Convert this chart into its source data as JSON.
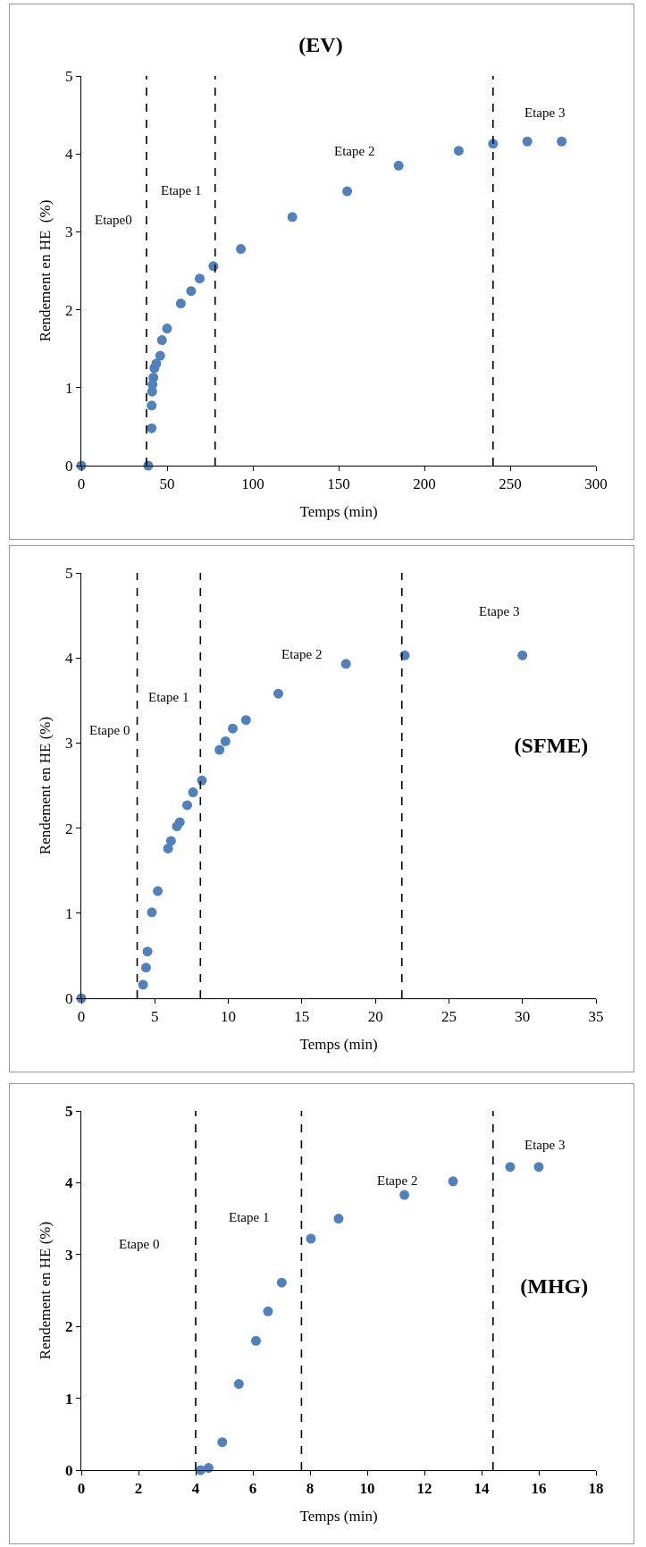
{
  "chart_data": [
    {
      "type": "scatter",
      "title": "(EV)",
      "xlabel": "Temps (min)",
      "ylabel": "Rendement en HE  (%)",
      "x": [
        0,
        39,
        41,
        41,
        41.3,
        41.5,
        42,
        42.6,
        43.7,
        46,
        47,
        50,
        58,
        64,
        69,
        77,
        93,
        123,
        155,
        185,
        220,
        240,
        260,
        280
      ],
      "series": [
        {
          "color": "#4f81bd",
          "values": [
            0,
            0,
            0.48,
            0.77,
            0.95,
            1.04,
            1.13,
            1.25,
            1.31,
            1.41,
            1.61,
            1.76,
            2.08,
            2.24,
            2.4,
            2.56,
            2.78,
            3.19,
            3.52,
            3.85,
            4.04,
            4.13,
            4.16,
            4.16
          ]
        }
      ],
      "xlim": [
        0,
        300
      ],
      "xticks": [
        0,
        50,
        100,
        150,
        200,
        250,
        300
      ],
      "ylim": [
        0,
        5
      ],
      "yticks": [
        0,
        1,
        2,
        3,
        4,
        5
      ],
      "grid": false,
      "marker": "circle",
      "ref_lines": [
        {
          "axis": "x",
          "value": 38,
          "color": "#000000",
          "line_style": "dashed"
        },
        {
          "axis": "x",
          "value": 78,
          "color": "#000000",
          "line_style": "dashed"
        },
        {
          "axis": "x",
          "value": 240,
          "color": "#000000",
          "line_style": "dashed"
        }
      ],
      "annotations": [
        "Etape0",
        "Etape 1",
        "Etape 2",
        "Etape 3"
      ]
    },
    {
      "type": "scatter",
      "title": "(SFME)",
      "xlabel": "Temps (min)",
      "ylabel": "Rendement en HE (%)",
      "x": [
        0,
        4.2,
        4.4,
        4.5,
        4.8,
        5.2,
        5.9,
        6.1,
        6.5,
        6.7,
        7.2,
        7.6,
        8.2,
        9.4,
        9.8,
        10.3,
        11.2,
        13.4,
        18,
        22,
        30
      ],
      "series": [
        {
          "color": "#4f81bd",
          "values": [
            0,
            0.16,
            0.36,
            0.55,
            1.01,
            1.26,
            1.76,
            1.85,
            2.02,
            2.07,
            2.27,
            2.42,
            2.56,
            2.92,
            3.02,
            3.17,
            3.27,
            3.58,
            3.93,
            4.03,
            4.03
          ]
        }
      ],
      "xlim": [
        0,
        35
      ],
      "xticks": [
        0,
        5,
        10,
        15,
        20,
        25,
        30,
        35
      ],
      "ylim": [
        0,
        5
      ],
      "yticks": [
        0,
        1,
        2,
        3,
        4,
        5
      ],
      "grid": false,
      "marker": "circle",
      "ref_lines": [
        {
          "axis": "x",
          "value": 3.8,
          "color": "#000000",
          "line_style": "dashed"
        },
        {
          "axis": "x",
          "value": 8.1,
          "color": "#000000",
          "line_style": "dashed"
        },
        {
          "axis": "x",
          "value": 21.8,
          "color": "#000000",
          "line_style": "dashed"
        }
      ],
      "annotations": [
        "Etape 0",
        "Etape 1",
        "Etape 2",
        "Etape 3"
      ]
    },
    {
      "type": "scatter",
      "title": "(MHG)",
      "xlabel": "Temps (min)",
      "ylabel": "Rendement en HE (%)",
      "x": [
        4.17,
        4.45,
        4.93,
        5.51,
        6.11,
        6.53,
        7.01,
        8.03,
        9.0,
        11.3,
        13.0,
        15.0,
        16.0
      ],
      "series": [
        {
          "color": "#4f81bd",
          "values": [
            0,
            0.03,
            0.39,
            1.2,
            1.8,
            2.21,
            2.61,
            3.22,
            3.5,
            3.83,
            4.02,
            4.22,
            4.22
          ]
        }
      ],
      "xlim": [
        0,
        18
      ],
      "xticks": [
        0,
        2,
        4,
        6,
        8,
        10,
        12,
        14,
        16,
        18
      ],
      "ylim": [
        0,
        5
      ],
      "yticks": [
        0,
        1,
        2,
        3,
        4,
        5
      ],
      "grid": false,
      "marker": "circle",
      "ref_lines": [
        {
          "axis": "x",
          "value": 4.0,
          "color": "#000000",
          "line_style": "dashed"
        },
        {
          "axis": "x",
          "value": 7.7,
          "color": "#000000",
          "line_style": "dashed"
        },
        {
          "axis": "x",
          "value": 14.4,
          "color": "#000000",
          "line_style": "dashed"
        }
      ],
      "annotations": [
        "Etape 0",
        "Etape 1",
        "Etape 2",
        "Etape 3"
      ]
    }
  ]
}
